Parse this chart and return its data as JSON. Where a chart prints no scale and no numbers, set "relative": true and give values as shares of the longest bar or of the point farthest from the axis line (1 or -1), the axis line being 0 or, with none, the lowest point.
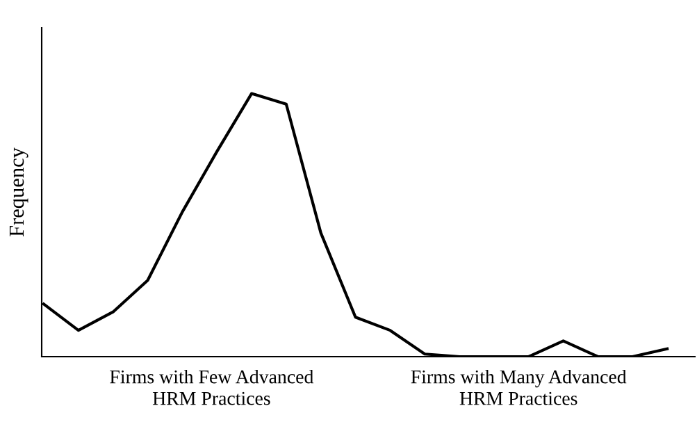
{
  "chart_data": {
    "type": "line",
    "ylabel": "Frequency",
    "relative": true,
    "categories": [
      null,
      null,
      null,
      null,
      null,
      null,
      null,
      null,
      null,
      null,
      null,
      null,
      null,
      null,
      null,
      null,
      null,
      null,
      null
    ],
    "series": [
      {
        "color": "#000000",
        "values": [
          0.2,
          0.1,
          0.17,
          0.29,
          0.55,
          0.78,
          1,
          0.96,
          0.47,
          0.15,
          0.1,
          0.01,
          0,
          0,
          0,
          0.06,
          0,
          0,
          0.03
        ]
      }
    ],
    "annotations": [
      "Firms with Few Advanced\nHRM Practices",
      "Firms with Many Advanced\nHRM Practices"
    ],
    "grid": false,
    "legend": false,
    "marker": "none",
    "line_style": "solid"
  }
}
